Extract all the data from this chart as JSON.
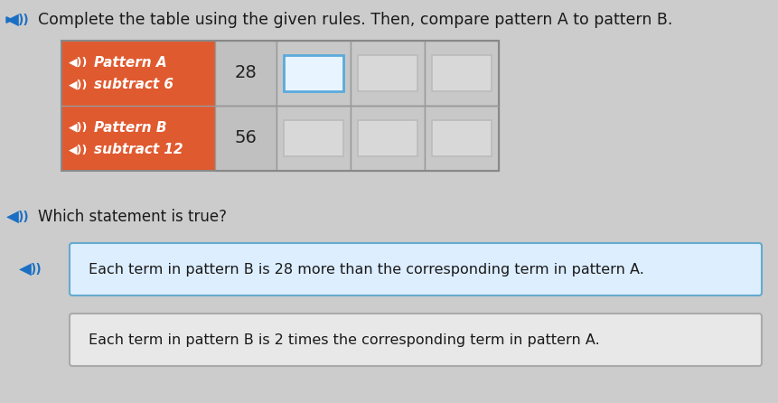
{
  "background_color": "#cccccc",
  "title_text": "Complete the table using the given rules. Then, compare pattern A to pattern B.",
  "title_color": "#1a1a1a",
  "title_fontsize": 12.5,
  "speaker_color": "#1a6fc4",
  "table": {
    "row1_label_line1": "Pattern A",
    "row1_label_line2": "subtract 6",
    "row2_label_line1": "Pattern B",
    "row2_label_line2": "subtract 12",
    "row1_start": "28",
    "row2_start": "56",
    "row_label_bg": "#e05a30",
    "row_label_text": "#ffffff",
    "data_cell_bg": "#c8c8c8",
    "start_cell_bg": "#c0c0c0",
    "cell_border": "#999999",
    "empty_cell_bg": "#d0d0d0",
    "empty_cell_border_normal": "#aaaaaa",
    "empty_cell_border_highlight": "#5aaadd",
    "highlight_row": 0,
    "highlight_col": 1
  },
  "which_statement_text": "Which statement is true?",
  "answers": [
    {
      "text": "Each term in pattern B is 28 more than the corresponding term in pattern A.",
      "bg": "#ddeeff",
      "border": "#66aacc",
      "text_color": "#1a1a1a",
      "selected": true
    },
    {
      "text": "Each term in pattern B is 2 times the corresponding term in pattern A.",
      "bg": "#e8e8e8",
      "border": "#aaaaaa",
      "text_color": "#1a1a1a",
      "selected": false
    }
  ],
  "fig_width": 8.62,
  "fig_height": 4.46,
  "dpi": 100
}
